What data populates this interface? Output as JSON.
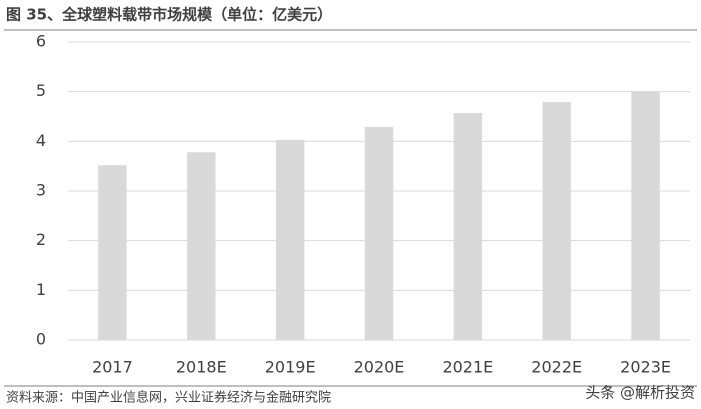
{
  "chart_data": {
    "type": "bar",
    "title": "图 35、全球塑料载带市场规模（单位：亿美元）",
    "categories": [
      "2017",
      "2018E",
      "2019E",
      "2020E",
      "2021E",
      "2022E",
      "2023E"
    ],
    "values": [
      3.52,
      3.78,
      4.03,
      4.29,
      4.57,
      4.79,
      5.01
    ],
    "color": "#d9d9d9",
    "ylim": [
      0,
      6
    ],
    "yticks": [
      0,
      1,
      2,
      3,
      4,
      5,
      6
    ],
    "grid": true,
    "source": "资料来源：中国产业信息网，兴业证券经济与金融研究院",
    "watermark": "头条 @解析投资"
  }
}
